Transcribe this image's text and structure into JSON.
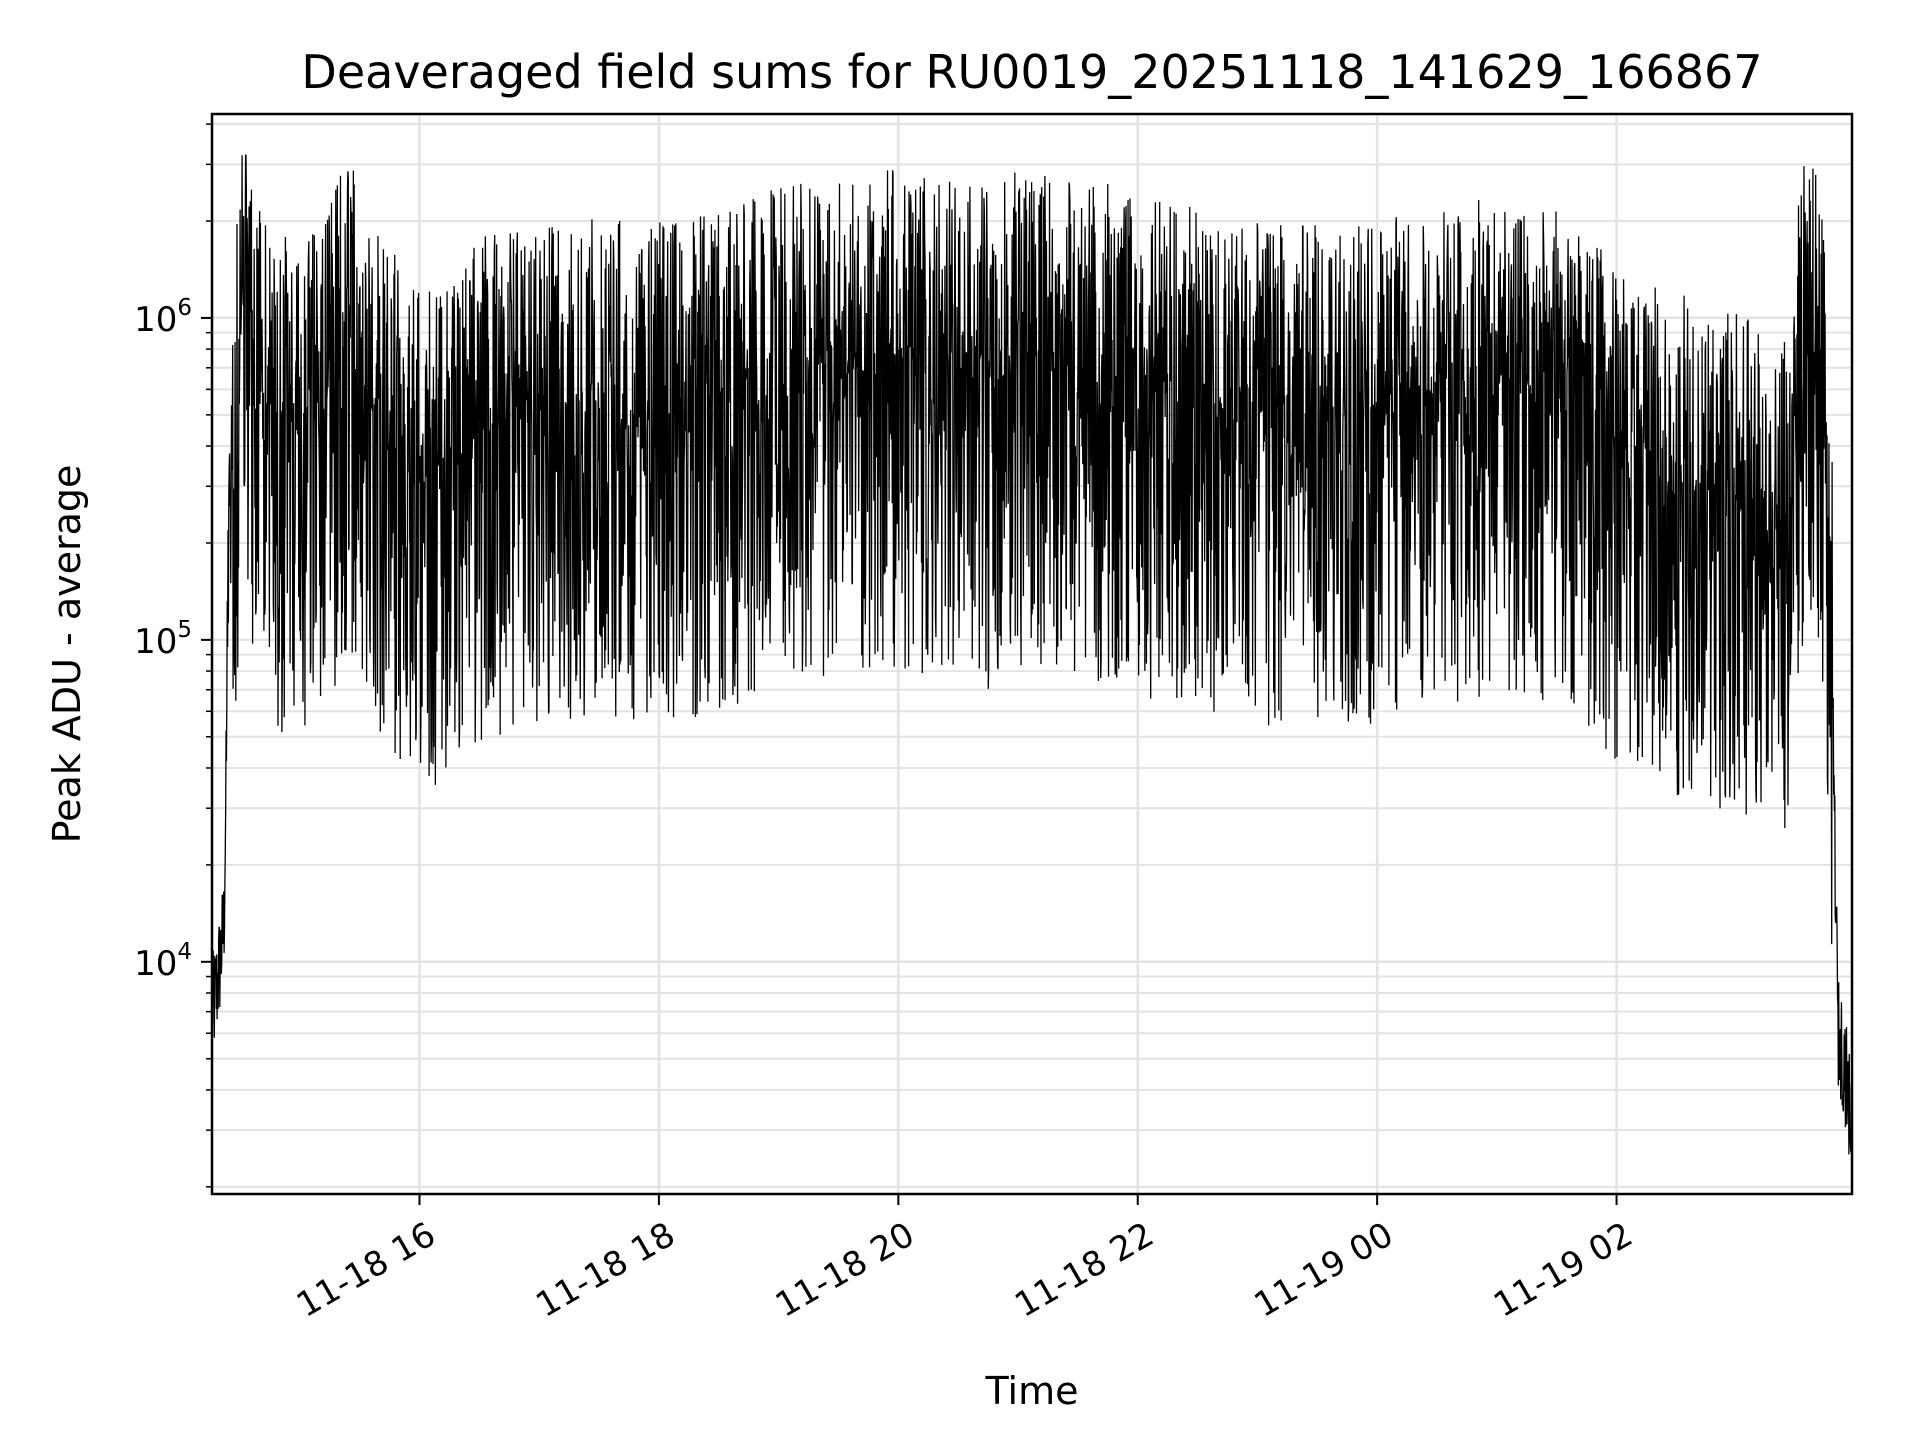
{
  "chart_data": {
    "type": "line",
    "title": "Deaveraged field sums for RU0019_20251118_141629_166867",
    "xlabel": "Time",
    "ylabel": "Peak ADU - average",
    "xscale": "time",
    "yscale": "log",
    "xlim": [
      "2025-11-18 14:16",
      "2025-11-19 03:58"
    ],
    "ylim": [
      1900,
      4300000
    ],
    "grid": true,
    "line_color": "#000000",
    "x_ticks": [
      {
        "value": "2025-11-18 16:00",
        "label": "11-18 16"
      },
      {
        "value": "2025-11-18 18:00",
        "label": "11-18 18"
      },
      {
        "value": "2025-11-18 20:00",
        "label": "11-18 20"
      },
      {
        "value": "2025-11-18 22:00",
        "label": "11-18 22"
      },
      {
        "value": "2025-11-19 00:00",
        "label": "11-19 00"
      },
      {
        "value": "2025-11-19 02:00",
        "label": "11-19 02"
      }
    ],
    "y_ticks": [
      {
        "value": 10000,
        "base": "10",
        "exp": "4"
      },
      {
        "value": 100000,
        "base": "10",
        "exp": "5"
      },
      {
        "value": 1000000,
        "base": "10",
        "exp": "6"
      }
    ],
    "series": [
      {
        "x": [
          "2025-11-18 14:16",
          "2025-11-18 14:18",
          "2025-11-18 14:20",
          "2025-11-18 14:22",
          "2025-11-18 14:24",
          "2025-11-18 14:27",
          "2025-11-18 14:30",
          "2025-11-18 14:33",
          "2025-11-18 14:36",
          "2025-11-18 14:40",
          "2025-11-18 14:45",
          "2025-11-18 14:50",
          "2025-11-18 15:00",
          "2025-11-18 15:10",
          "2025-11-18 15:20",
          "2025-11-18 15:25",
          "2025-11-18 15:30",
          "2025-11-18 15:40",
          "2025-11-18 15:50",
          "2025-11-18 16:00",
          "2025-11-18 16:10",
          "2025-11-18 16:30",
          "2025-11-18 17:00",
          "2025-11-18 17:30",
          "2025-11-18 18:00",
          "2025-11-18 18:30",
          "2025-11-18 19:00",
          "2025-11-18 19:30",
          "2025-11-18 20:00",
          "2025-11-18 20:30",
          "2025-11-18 20:45",
          "2025-11-18 21:00",
          "2025-11-18 21:30",
          "2025-11-18 22:00",
          "2025-11-18 22:30",
          "2025-11-18 23:00",
          "2025-11-18 23:30",
          "2025-11-19 00:00",
          "2025-11-19 00:30",
          "2025-11-19 01:00",
          "2025-11-19 01:30",
          "2025-11-19 02:00",
          "2025-11-19 02:30",
          "2025-11-19 03:00",
          "2025-11-19 03:25",
          "2025-11-19 03:30",
          "2025-11-19 03:35",
          "2025-11-19 03:40",
          "2025-11-19 03:45",
          "2025-11-19 03:48",
          "2025-11-19 03:51",
          "2025-11-19 03:54",
          "2025-11-19 03:58"
        ],
        "y": [
          7000,
          8000,
          10000,
          13000,
          90000,
          300000,
          1000000,
          1500000,
          700000,
          500000,
          450000,
          400000,
          350000,
          450000,
          600000,
          700000,
          550000,
          400000,
          320000,
          280000,
          260000,
          380000,
          420000,
          450000,
          430000,
          470000,
          560000,
          600000,
          620000,
          580000,
          550000,
          620000,
          600000,
          520000,
          480000,
          430000,
          420000,
          430000,
          480000,
          520000,
          460000,
          330000,
          260000,
          220000,
          200000,
          500000,
          700000,
          600000,
          400000,
          80000,
          6000,
          5000,
          3000
        ]
      }
    ]
  }
}
